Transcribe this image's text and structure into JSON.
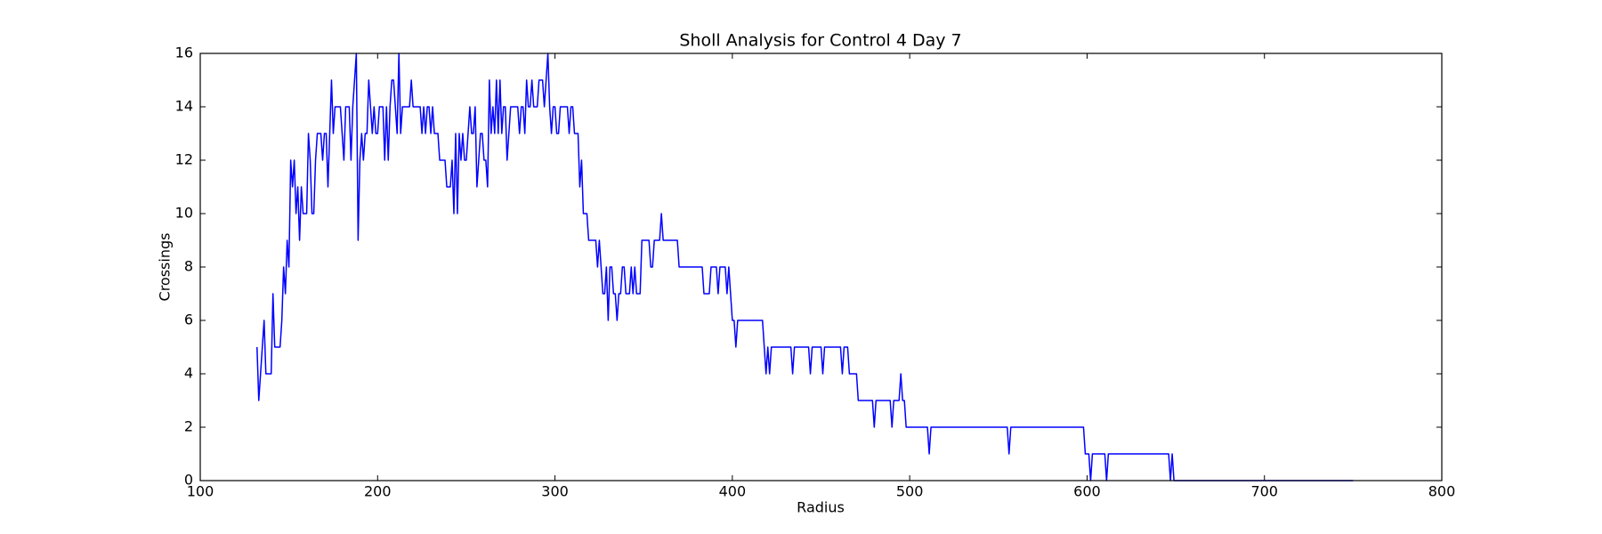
{
  "chart_data": {
    "type": "line",
    "title": "Sholl Analysis for Control 4 Day 7",
    "xlabel": "Radius",
    "ylabel": "Crossings",
    "color": "#0000ff",
    "x": [
      132,
      133,
      135,
      136,
      137,
      140,
      141,
      142,
      145,
      146,
      147,
      148,
      149,
      150,
      151,
      152,
      153,
      154,
      155,
      156,
      157,
      158,
      160,
      161,
      162,
      163,
      164,
      165,
      166,
      168,
      169,
      170,
      171,
      172,
      173,
      174,
      175,
      176,
      179,
      180,
      181,
      182,
      184,
      185,
      186,
      188,
      189,
      190,
      191,
      192,
      193,
      194,
      195,
      196,
      197,
      198,
      199,
      200,
      201,
      203,
      204,
      205,
      206,
      207,
      208,
      209,
      211,
      212,
      213,
      214,
      218,
      219,
      220,
      224,
      225,
      226,
      227,
      228,
      229,
      230,
      231,
      232,
      234,
      235,
      238,
      239,
      241,
      242,
      243,
      244,
      245,
      246,
      247,
      248,
      249,
      250,
      251,
      252,
      253,
      254,
      255,
      256,
      257,
      258,
      259,
      260,
      261,
      262,
      263,
      264,
      265,
      266,
      267,
      268,
      269,
      270,
      271,
      272,
      273,
      274,
      275,
      279,
      280,
      281,
      282,
      283,
      284,
      285,
      286,
      287,
      288,
      290,
      291,
      293,
      294,
      295,
      296,
      297,
      298,
      299,
      300,
      301,
      302,
      303,
      307,
      308,
      309,
      310,
      311,
      313,
      314,
      315,
      316,
      318,
      319,
      323,
      324,
      325,
      326,
      327,
      328,
      329,
      330,
      331,
      332,
      333,
      334,
      335,
      336,
      337,
      338,
      339,
      340,
      342,
      343,
      344,
      345,
      346,
      348,
      349,
      353,
      354,
      355,
      356,
      359,
      360,
      361,
      369,
      370,
      383,
      384,
      387,
      388,
      391,
      392,
      393,
      396,
      397,
      398,
      399,
      400,
      401,
      402,
      403,
      417,
      418,
      419,
      420,
      421,
      422,
      433,
      434,
      435,
      443,
      444,
      445,
      450,
      451,
      452,
      461,
      462,
      463,
      465,
      466,
      470,
      471,
      479,
      480,
      481,
      489,
      490,
      491,
      494,
      495,
      496,
      497,
      498,
      510,
      511,
      512,
      555,
      556,
      557,
      598,
      599,
      601,
      602,
      603,
      610,
      611,
      612,
      646,
      647,
      648,
      649,
      750
    ],
    "values": [
      5,
      3,
      5,
      6,
      4,
      4,
      7,
      5,
      5,
      6,
      8,
      7,
      9,
      8,
      12,
      11,
      12,
      10,
      11,
      9,
      11,
      10,
      10,
      13,
      12,
      10,
      10,
      12,
      13,
      13,
      12,
      13,
      13,
      11,
      13,
      15,
      13,
      14,
      14,
      13,
      12,
      14,
      14,
      12,
      14,
      16,
      9,
      12,
      13,
      12,
      13,
      13,
      15,
      14,
      13,
      14,
      13,
      13,
      14,
      14,
      12,
      14,
      12,
      14,
      15,
      15,
      13,
      16,
      13,
      14,
      14,
      15,
      14,
      14,
      13,
      14,
      13,
      14,
      14,
      13,
      14,
      13,
      13,
      12,
      12,
      11,
      11,
      12,
      10,
      13,
      10,
      13,
      12,
      13,
      12,
      12,
      13,
      14,
      13,
      13,
      14,
      11,
      12,
      13,
      13,
      12,
      12,
      11,
      15,
      13,
      14,
      13,
      15,
      13,
      15,
      13,
      14,
      14,
      12,
      13,
      14,
      14,
      13,
      14,
      14,
      13,
      15,
      14,
      14,
      15,
      14,
      14,
      15,
      15,
      14,
      15,
      16,
      14,
      13,
      14,
      14,
      13,
      13,
      14,
      14,
      13,
      14,
      14,
      13,
      13,
      11,
      12,
      10,
      10,
      9,
      9,
      8,
      9,
      8,
      7,
      7,
      8,
      6,
      8,
      8,
      7,
      7,
      6,
      7,
      7,
      8,
      8,
      7,
      7,
      8,
      7,
      8,
      7,
      7,
      9,
      9,
      8,
      8,
      9,
      9,
      10,
      9,
      9,
      8,
      8,
      7,
      7,
      8,
      8,
      7,
      8,
      8,
      7,
      8,
      7,
      6,
      6,
      5,
      6,
      6,
      5,
      4,
      5,
      4,
      5,
      5,
      4,
      5,
      5,
      4,
      5,
      5,
      4,
      5,
      5,
      4,
      5,
      5,
      4,
      4,
      3,
      3,
      2,
      3,
      3,
      2,
      3,
      3,
      4,
      3,
      3,
      2,
      2,
      1,
      2,
      2,
      1,
      2,
      2,
      1,
      1,
      0,
      1,
      1,
      0,
      1,
      1,
      0,
      1,
      0,
      0
    ],
    "xlim": [
      100,
      800
    ],
    "xticks": [
      100,
      200,
      300,
      400,
      500,
      600,
      700,
      800
    ],
    "ylim": [
      0,
      16
    ],
    "yticks": [
      0,
      2,
      4,
      6,
      8,
      10,
      12,
      14,
      16
    ]
  }
}
